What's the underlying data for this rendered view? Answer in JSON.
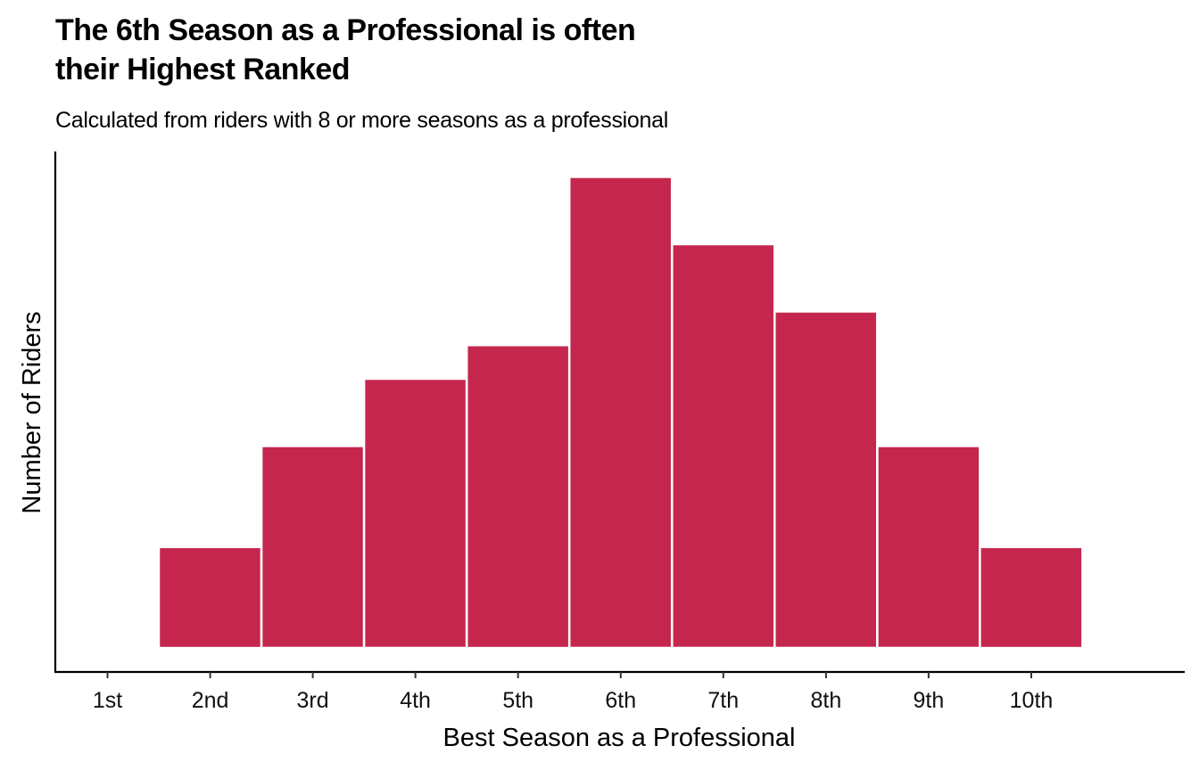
{
  "chart_data": {
    "type": "bar",
    "title_line1": "The 6th Season as a Professional is often",
    "title_line2": "their Highest Ranked",
    "subtitle": "Calculated from riders with 8 or more seasons as a professional",
    "xlabel": "Best Season as a Professional",
    "ylabel": "Number of Riders",
    "categories": [
      "1st",
      "2nd",
      "3rd",
      "4th",
      "5th",
      "6th",
      "7th",
      "8th",
      "9th",
      "10th"
    ],
    "values": [
      0,
      3,
      6,
      8,
      9,
      14,
      12,
      10,
      6,
      3
    ],
    "ylim": [
      0,
      14.7
    ],
    "y_tick_labels_shown": false,
    "grid": false,
    "bar_color": "#C5264E",
    "bar_outline_color": "#FFFFFF"
  }
}
